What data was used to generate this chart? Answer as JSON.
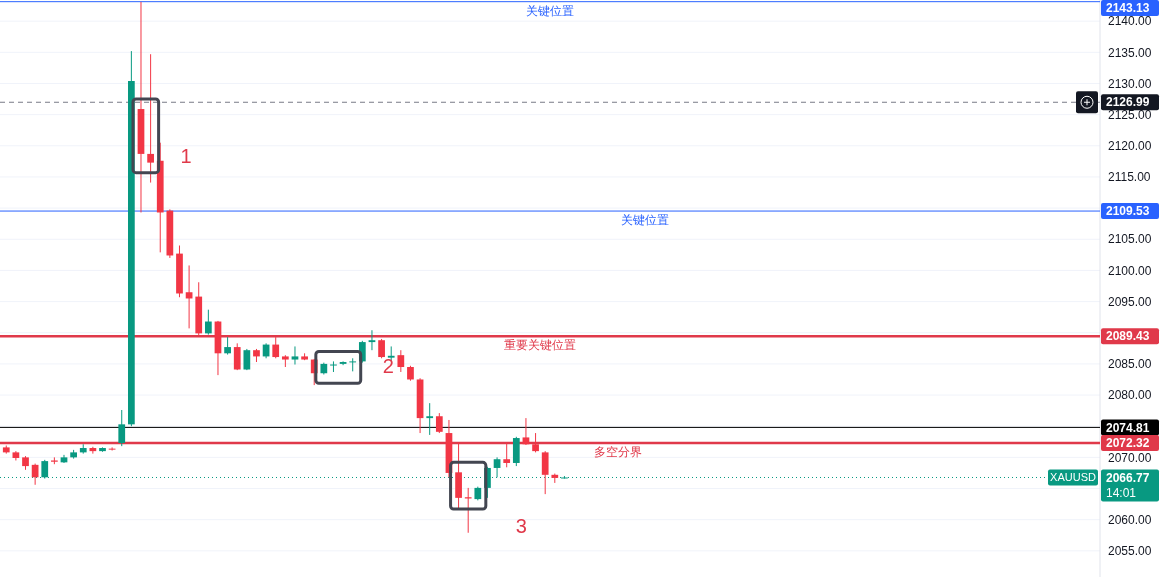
{
  "chart_data": {
    "type": "candlestick",
    "categories": [
      null,
      null,
      null,
      null,
      null,
      null,
      null,
      null,
      null,
      null,
      null,
      null,
      null,
      null,
      null,
      null,
      null,
      null,
      null,
      null,
      null,
      null,
      null,
      null,
      null,
      null,
      null,
      null,
      null,
      null,
      null,
      null,
      null,
      null,
      null,
      null,
      null,
      null,
      null,
      null,
      null,
      null,
      null,
      null,
      null,
      null,
      null,
      null,
      null,
      null,
      null,
      null,
      null,
      null,
      null,
      null,
      null,
      null,
      null,
      null,
      null,
      null,
      null,
      null,
      null,
      null,
      null,
      null,
      null,
      null,
      null,
      null,
      null,
      null,
      null,
      null,
      null,
      null,
      null,
      null,
      null,
      null,
      null,
      null,
      null,
      null,
      null,
      null,
      null,
      null,
      null,
      null,
      null,
      null,
      null,
      null,
      null,
      null,
      null,
      null,
      null,
      null,
      null,
      null,
      null,
      null,
      null,
      null,
      null,
      null,
      null,
      null,
      null,
      null
    ],
    "ohlc": [
      [
        2071.6,
        2071.9,
        2070.6,
        2070.8
      ],
      [
        2070.8,
        2071.0,
        2069.5,
        2069.9
      ],
      [
        2070.0,
        2070.2,
        2068.0,
        2068.6
      ],
      [
        2068.8,
        2069.0,
        2065.6,
        2066.8
      ],
      [
        2066.8,
        2069.6,
        2066.6,
        2069.4
      ],
      [
        2069.5,
        2070.0,
        2068.9,
        2069.3
      ],
      [
        2069.2,
        2070.4,
        2069.1,
        2070.0
      ],
      [
        2070.0,
        2071.2,
        2069.8,
        2070.8
      ],
      [
        2070.8,
        2072.1,
        2070.6,
        2071.5
      ],
      [
        2071.5,
        2071.7,
        2070.6,
        2071.0
      ],
      [
        2071.0,
        2071.6,
        2070.9,
        2071.5
      ],
      [
        2071.4,
        2071.6,
        2071.1,
        2071.3
      ],
      [
        2072.3,
        2077.6,
        2071.8,
        2075.3
      ],
      [
        2075.3,
        2135.2,
        2075.0,
        2130.4
      ],
      [
        2125.9,
        2143.1,
        2109.3,
        2118.7
      ],
      [
        2118.7,
        2134.7,
        2114.1,
        2117.3
      ],
      [
        2117.6,
        2120.5,
        2102.9,
        2109.3
      ],
      [
        2109.6,
        2109.8,
        2102.0,
        2102.4
      ],
      [
        2102.7,
        2104.0,
        2095.7,
        2096.3
      ],
      [
        2096.5,
        2100.8,
        2090.7,
        2095.5
      ],
      [
        2095.8,
        2098.1,
        2089.5,
        2089.9
      ],
      [
        2089.9,
        2093.7,
        2089.7,
        2091.8
      ],
      [
        2091.8,
        2091.9,
        2083.2,
        2086.7
      ],
      [
        2086.7,
        2089.3,
        2086.5,
        2087.7
      ],
      [
        2087.7,
        2088.3,
        2084.0,
        2084.1
      ],
      [
        2084.1,
        2087.4,
        2084.0,
        2087.2
      ],
      [
        2087.2,
        2087.4,
        2085.3,
        2086.2
      ],
      [
        2086.2,
        2088.3,
        2085.9,
        2088.1
      ],
      [
        2088.1,
        2089.3,
        2085.9,
        2086.1
      ],
      [
        2086.2,
        2086.4,
        2084.5,
        2085.7
      ],
      [
        2085.7,
        2087.8,
        2084.9,
        2086.2
      ],
      [
        2086.2,
        2086.7,
        2085.6,
        2085.7
      ],
      [
        2085.7,
        2085.8,
        2081.6,
        2083.5
      ],
      [
        2083.5,
        2085.2,
        2083.3,
        2085.0
      ],
      [
        2084.8,
        2085.4,
        2083.7,
        2084.9
      ],
      [
        2085.0,
        2085.4,
        2084.8,
        2085.3
      ],
      [
        2085.3,
        2085.9,
        2083.8,
        2085.4
      ],
      [
        2085.4,
        2088.7,
        2085.2,
        2088.5
      ],
      [
        2088.5,
        2090.4,
        2087.2,
        2088.8
      ],
      [
        2088.8,
        2089.0,
        2085.9,
        2086.1
      ],
      [
        2086.0,
        2087.8,
        2085.4,
        2086.3
      ],
      [
        2086.4,
        2087.2,
        2083.7,
        2084.5
      ],
      [
        2084.5,
        2084.7,
        2082.3,
        2082.5
      ],
      [
        2082.5,
        2082.7,
        2073.9,
        2076.3
      ],
      [
        2076.3,
        2078.7,
        2073.6,
        2076.6
      ],
      [
        2076.6,
        2077.1,
        2073.9,
        2074.1
      ],
      [
        2073.9,
        2076.0,
        2066.8,
        2067.5
      ],
      [
        2067.6,
        2072.4,
        2061.6,
        2063.5
      ],
      [
        2063.6,
        2065.1,
        2057.9,
        2063.4
      ],
      [
        2063.3,
        2065.3,
        2063.1,
        2065.1
      ],
      [
        2065.1,
        2068.5,
        2063.5,
        2068.3
      ],
      [
        2068.3,
        2070.0,
        2066.8,
        2069.7
      ],
      [
        2069.7,
        2072.3,
        2068.4,
        2069.1
      ],
      [
        2069.1,
        2073.3,
        2068.6,
        2073.1
      ],
      [
        2073.2,
        2076.3,
        2072.0,
        2072.1
      ],
      [
        2072.1,
        2073.9,
        2070.8,
        2071.0
      ],
      [
        2070.8,
        2071.0,
        2064.1,
        2067.2
      ],
      [
        2067.2,
        2067.4,
        2065.9,
        2066.7
      ],
      [
        2066.77,
        2067.0,
        2066.6,
        2066.77
      ],
      null,
      null,
      null,
      null,
      null,
      null,
      null,
      null,
      null,
      null,
      null,
      null,
      null,
      null,
      null,
      null,
      null,
      null,
      null,
      null,
      null,
      null,
      null,
      null,
      null,
      null,
      null,
      null,
      null,
      null,
      null,
      null,
      null,
      null,
      null,
      null,
      null,
      null,
      null,
      null,
      null,
      null,
      null,
      null,
      null,
      null,
      null,
      null,
      null,
      null,
      null,
      null,
      null,
      null,
      null
    ],
    "colors": [
      "#f23645",
      "#f23645",
      "#f23645",
      "#f23645",
      "#089981",
      "#f23645",
      "#089981",
      "#089981",
      "#089981",
      "#f23645",
      "#089981",
      "#f23645",
      "#089981",
      "#089981",
      "#f23645",
      "#f23645",
      "#f23645",
      "#f23645",
      "#f23645",
      "#f23645",
      "#f23645",
      "#089981",
      "#f23645",
      "#089981",
      "#f23645",
      "#089981",
      "#f23645",
      "#089981",
      "#f23645",
      "#f23645",
      "#089981",
      "#f23645",
      "#f23645",
      "#089981",
      "#089981",
      "#089981",
      "#089981",
      "#089981",
      "#089981",
      "#f23645",
      "#089981",
      "#f23645",
      "#f23645",
      "#f23645",
      "#089981",
      "#f23645",
      "#f23645",
      "#f23645",
      "#f23645",
      "#089981",
      "#089981",
      "#089981",
      "#f23645",
      "#089981",
      "#f23645",
      "#f23645",
      "#f23645",
      "#f23645",
      "#089981",
      null,
      null,
      null,
      null,
      null,
      null,
      null,
      null,
      null,
      null,
      null,
      null,
      null,
      null,
      null,
      null,
      null,
      null,
      null,
      null,
      null,
      null,
      null,
      null,
      null,
      null,
      null,
      null,
      null,
      null,
      null,
      null,
      null,
      null,
      null,
      null,
      null,
      null,
      null,
      null,
      null,
      null,
      null,
      null,
      null,
      null,
      null,
      null,
      null,
      null,
      null,
      null,
      null,
      null,
      null
    ],
    "ylim": [
      2050.8,
      2143.4
    ],
    "yticks": [
      {
        "value": 2055,
        "label": "2055.00"
      },
      {
        "value": 2060,
        "label": "2060.00"
      },
      {
        "value": 2065,
        "label": null
      },
      {
        "value": 2070,
        "label": "2070.00"
      },
      {
        "value": 2075,
        "label": null
      },
      {
        "value": 2080,
        "label": "2080.00"
      },
      {
        "value": 2085,
        "label": "2085.00"
      },
      {
        "value": 2090,
        "label": null
      },
      {
        "value": 2095,
        "label": "2095.00"
      },
      {
        "value": 2100,
        "label": "2100.00"
      },
      {
        "value": 2105,
        "label": "2105.00"
      },
      {
        "value": 2110,
        "label": null
      },
      {
        "value": 2115,
        "label": "2115.00"
      },
      {
        "value": 2120,
        "label": "2120.00"
      },
      {
        "value": 2125,
        "label": "2125.00"
      },
      {
        "value": 2130,
        "label": "2130.00"
      },
      {
        "value": 2135,
        "label": "2135.00"
      },
      {
        "value": 2140,
        "label": "2140.00"
      }
    ],
    "grid": "y",
    "ref_lines": [
      {
        "axis": "y",
        "value": 2143.13,
        "label": "关键位置",
        "color": "#2962ff",
        "line_style": "solid"
      },
      {
        "axis": "y",
        "value": 2126.99,
        "color": "#787b86",
        "line_style": "dashed"
      },
      {
        "axis": "y",
        "value": 2109.53,
        "label": "关键位置",
        "color": "#2962ff",
        "line_style": "solid"
      },
      {
        "axis": "y",
        "value": 2089.43,
        "label": "重要关键位置",
        "color": "#e0394a",
        "line_style": "solid"
      },
      {
        "axis": "y",
        "value": 2074.81,
        "color": "#000000",
        "line_style": "solid"
      },
      {
        "axis": "y",
        "value": 2072.32,
        "label": "多空分界",
        "color": "#e0394a",
        "line_style": "solid"
      },
      {
        "axis": "y",
        "value": 2066.77,
        "label": "XAUUSD",
        "color": "#089981",
        "line_style": "dotted"
      }
    ],
    "annotations": [
      "1",
      "2",
      "3",
      "14:01",
      "2143.13",
      "2126.99",
      "2109.53",
      "2089.43",
      "2074.81",
      "2072.32",
      "2066.77"
    ]
  }
}
